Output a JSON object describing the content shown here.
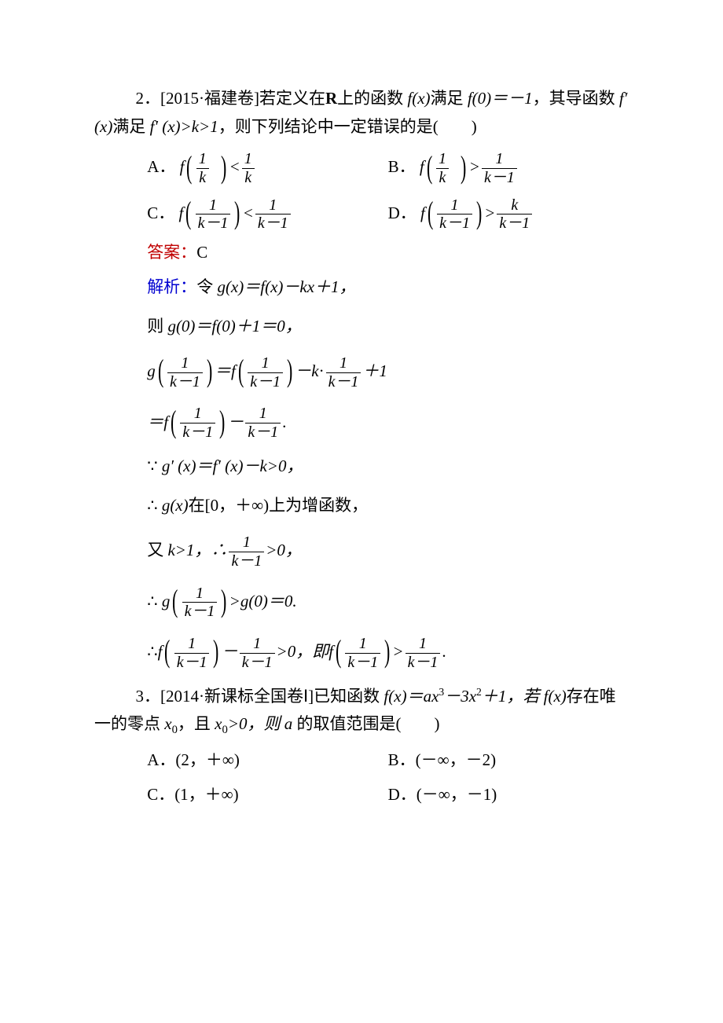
{
  "q2": {
    "prefix": "2．[2015·福建卷]若定义在",
    "R": "R",
    "after_R": "上的函数 ",
    "fx": "f(x)",
    "mid1": "满足 ",
    "f0": "f(0)＝－1",
    "mid2": "，其导函数 ",
    "fprime": "f′  (x)",
    "mid3": "满足 ",
    "ineq": "f′  (x)>k>1",
    "tail": "，则下列结论中一定错误的是(　　)",
    "options": {
      "A_label": "A．",
      "A_func": "f",
      "A_arg_num": "1",
      "A_arg_den": "k",
      "A_rel": "<",
      "A_rhs_num": "1",
      "A_rhs_den": "k",
      "B_label": "B．",
      "B_func": "f",
      "B_arg_num": "1",
      "B_arg_den": "k",
      "B_rel": ">",
      "B_rhs_num": "1",
      "B_rhs_den": "k－1",
      "C_label": "C．",
      "C_func": "f",
      "C_arg_num": "1",
      "C_arg_den": "k－1",
      "C_rel": "<",
      "C_rhs_num": "1",
      "C_rhs_den": "k－1",
      "D_label": "D．",
      "D_func": "f",
      "D_arg_num": "1",
      "D_arg_den": "k－1",
      "D_rel": ">",
      "D_rhs_num": "k",
      "D_rhs_den": "k－1"
    },
    "answer_label": "答案：",
    "answer": "C",
    "explain_label": "解析：",
    "steps": {
      "s1_pre": "令 ",
      "s1": "g(x)＝f(x)－kx＋1，",
      "s2_pre": "则 ",
      "s2": "g(0)＝f(0)＋1＝0，",
      "s3_g": "g",
      "s3_num": "1",
      "s3_den": "k－1",
      "s3_eq": "＝",
      "s3_f": "f",
      "s3_minus": "－",
      "s3_k": "k",
      "s3_dot": "·",
      "s3_plus1": "＋1",
      "s4_eqf": "＝",
      "s4_f": "f",
      "s4_num": "1",
      "s4_den": "k－1",
      "s4_minus": "－",
      "s4_rhs_num": "1",
      "s4_rhs_den": "k－1",
      "s4_period": ".",
      "s5_because": "∵ ",
      "s5": "g′  (x)＝f′  (x)－k>0，",
      "s6_therefore": "∴ ",
      "s6_g": "g(x)",
      "s6_text": "在[0，＋∞)上为增函数，",
      "s7_pre": "又 ",
      "s7_k": "k>1，∴",
      "s7_num": "1",
      "s7_den": "k－1",
      "s7_tail": ">0，",
      "s8_therefore": "∴ ",
      "s8_g": "g",
      "s8_num": "1",
      "s8_den": "k－1",
      "s8_tail": ">g(0)＝0.",
      "s9_therefore": "∴",
      "s9_f": "f",
      "s9_num": "1",
      "s9_den": "k－1",
      "s9_minus": "－",
      "s9_r1_num": "1",
      "s9_r1_den": "k－1",
      "s9_mid": ">0，即",
      "s9_f2": "f",
      "s9_r2_num": "1",
      "s9_r2_den": "k－1",
      "s9_gt": ">",
      "s9_r3_num": "1",
      "s9_r3_den": "k－1",
      "s9_period": "."
    }
  },
  "q3": {
    "prefix": "3．[2014·新课标全国卷Ⅰ]已知函数 ",
    "fx": "f(x)＝ax",
    "cube": "3",
    "mid1": "－3x",
    "sq": "2",
    "mid2": "＋1，若 ",
    "fx2": "f(x)",
    "mid3": "存在唯一的零点 ",
    "x0": "x",
    "zero": "0",
    "mid4": "，且 ",
    "x0gt": "x",
    "mid5": ">0，则 ",
    "a": "a",
    "tail": " 的取值范围是(　　)",
    "options": {
      "A": "A．(2，＋∞)",
      "B": "B．(－∞，－2)",
      "C": "C．(1，＋∞)",
      "D": "D．(－∞，－1)"
    }
  }
}
